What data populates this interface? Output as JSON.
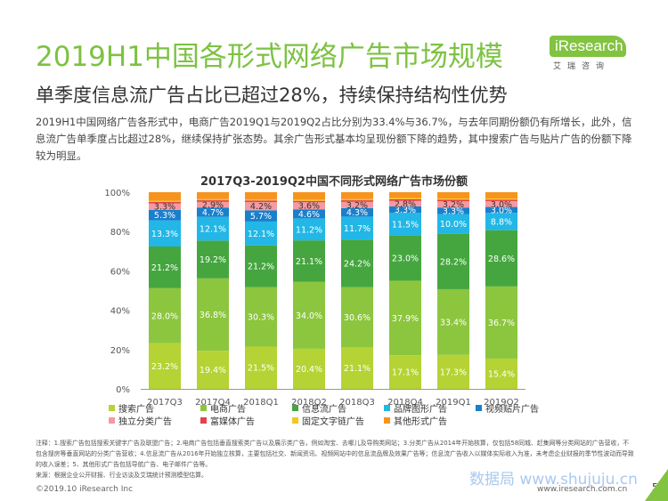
{
  "title": "2019H1中国各形式网络广告市场规模",
  "logo": {
    "brand": "iResearch",
    "sub": "艾瑞咨询"
  },
  "subtitle": "单季度信息流广告占比已超过28%，持续保持结构性优势",
  "description": "2019H1中国网络广告各形式中，电商广告2019Q1与2019Q2占比分别为33.4%与36.7%，与去年同期份额仍有所增长，此外，信息流广告单季度占比超过28%，继续保持扩张态势。其余广告形式基本均呈现份额下降的趋势，其中搜索广告与贴片广告的份额下降较为明显。",
  "notes": [
    "注释：1.搜索广告包括搜索关键字广告及联盟广告；2.电商广告包括垂直搜索类广告以及展示类广告，例如淘宝、去哪儿及导购类网站；3.分类广告从2014年开始核算，仅包括58同城、赶集网等分类网站的广告营收，不包含搜房等垂直网站的分类广告营收；4.信息流广告从2016年开始独立核算，主要包括社交、新闻资讯、视频网站中的信息流品牌及效果广告等；信息流广告收入以媒体实际收入为准，未考虑企业财报的季节性波动而导致的收入误差；5、其他形式广告包括导航广告、电子邮件广告等。",
    "来源：根据企业公开财报、行业访谈及艾瑞统计预测模型估算。"
  ],
  "footer": {
    "copyright": "©2019.10 iResearch Inc",
    "url": "www.iresearch.com.cn",
    "page": "5",
    "watermark": "数据局 www.shujuju.cn"
  },
  "chart_data": {
    "type": "bar",
    "stacked": true,
    "title": "2017Q3-2019Q2中国不同形式网络广告市场份额",
    "categories": [
      "2017Q3",
      "2017Q4",
      "2018Q1",
      "2018Q2",
      "2018Q3",
      "2018Q4",
      "2019Q1",
      "2019Q2"
    ],
    "ylim": [
      0,
      100
    ],
    "yticks": [
      "0%",
      "20%",
      "40%",
      "60%",
      "80%",
      "100%"
    ],
    "series": [
      {
        "name": "搜索广告",
        "color": "#b5d334",
        "values": [
          23.2,
          19.4,
          21.5,
          20.4,
          21.1,
          17.1,
          17.3,
          15.4
        ],
        "labels": [
          "23.2%",
          "19.4%",
          "21.5%",
          "20.4%",
          "21.1%",
          "17.1%",
          "17.3%",
          "15.4%"
        ]
      },
      {
        "name": "电商广告",
        "color": "#8cc63e",
        "values": [
          28.0,
          36.8,
          30.3,
          34.0,
          30.6,
          37.9,
          33.4,
          36.7
        ],
        "labels": [
          "28.0%",
          "36.8%",
          "30.3%",
          "34.0%",
          "30.6%",
          "37.9%",
          "33.4%",
          "36.7%"
        ]
      },
      {
        "name": "信息流广告",
        "color": "#45a63f",
        "values": [
          21.2,
          19.2,
          21.2,
          21.1,
          24.2,
          23.0,
          28.2,
          28.6
        ],
        "labels": [
          "21.2%",
          "19.2%",
          "21.2%",
          "21.1%",
          "24.2%",
          "23.0%",
          "28.2%",
          "28.6%"
        ]
      },
      {
        "name": "品牌图形广告",
        "color": "#22b7e6",
        "values": [
          13.3,
          12.1,
          12.1,
          11.2,
          11.7,
          11.5,
          10.0,
          8.8
        ],
        "labels": [
          "13.3%",
          "12.1%",
          "12.1%",
          "11.2%",
          "11.7%",
          "11.5%",
          "10.0%",
          "8.8%"
        ]
      },
      {
        "name": "视频贴片广告",
        "color": "#1a7fcc",
        "values": [
          5.3,
          4.7,
          5.7,
          4.6,
          4.3,
          3.3,
          3.3,
          3.0
        ],
        "labels": [
          "5.3%",
          "4.7%",
          "5.7%",
          "4.6%",
          "4.3%",
          "3.3%",
          "3.3%",
          "3.0%"
        ]
      },
      {
        "name": "独立分类广告",
        "color": "#f59aa0",
        "values": [
          3.3,
          2.9,
          4.2,
          3.6,
          3.2,
          2.8,
          3.2,
          3.0
        ],
        "labels": [
          "3.3%",
          "2.9%",
          "4.2%",
          "3.6%",
          "3.2%",
          "2.8%",
          "3.2%",
          "3.0%"
        ]
      },
      {
        "name": "富媒体广告",
        "color": "#e3414b",
        "values": [
          0.8,
          0.8,
          0.8,
          0.7,
          0.8,
          0.8,
          0.8,
          0.7
        ],
        "labels": []
      },
      {
        "name": "固定文字链广告",
        "color": "#f3c623",
        "values": [
          0.6,
          0.6,
          0.6,
          0.6,
          0.6,
          0.6,
          0.6,
          0.6
        ],
        "labels": []
      },
      {
        "name": "其他形式广告",
        "color": "#f7941d",
        "values": [
          4.3,
          3.5,
          3.6,
          3.8,
          3.5,
          3.0,
          3.2,
          3.2
        ],
        "labels": []
      }
    ],
    "legend_position": "bottom"
  }
}
